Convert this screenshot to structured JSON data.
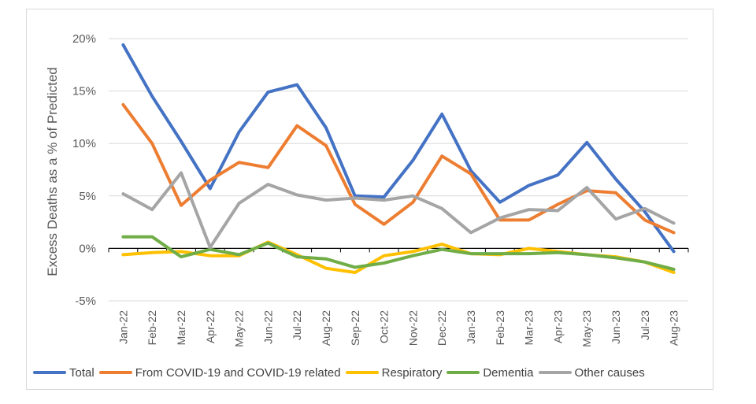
{
  "chart_data": {
    "type": "line",
    "title": "",
    "xlabel": "",
    "ylabel": "Excess Deaths as a % of Predicted",
    "ylim": [
      -5,
      20
    ],
    "yticks": [
      -5,
      0,
      5,
      10,
      15,
      20
    ],
    "ytick_labels": [
      "-5%",
      "0%",
      "5%",
      "10%",
      "15%",
      "20%"
    ],
    "grid": "horizontal",
    "legend_position": "bottom",
    "categories": [
      "Jan-22",
      "Feb-22",
      "Mar-22",
      "Apr-22",
      "May-22",
      "Jun-22",
      "Jul-22",
      "Aug-22",
      "Sep-22",
      "Oct-22",
      "Nov-22",
      "Dec-22",
      "Jan-23",
      "Feb-23",
      "Mar-23",
      "Apr-23",
      "May-23",
      "Jun-23",
      "Jul-23",
      "Aug-23"
    ],
    "series": [
      {
        "name": "Total",
        "color": "#4472c4",
        "values": [
          19.4,
          14.5,
          10.2,
          5.7,
          11.1,
          14.9,
          15.6,
          11.5,
          5.0,
          4.9,
          8.4,
          12.8,
          7.4,
          4.4,
          6.0,
          7.0,
          10.1,
          6.6,
          3.5,
          -0.3
        ]
      },
      {
        "name": "From COVID-19 and COVID-19 related",
        "color": "#ed7d31",
        "values": [
          13.7,
          10.0,
          4.1,
          6.5,
          8.2,
          7.7,
          11.7,
          9.8,
          4.2,
          2.3,
          4.4,
          8.8,
          7.1,
          2.7,
          2.7,
          4.2,
          5.5,
          5.3,
          2.7,
          1.5
        ]
      },
      {
        "name": "Respiratory",
        "color": "#ffc000",
        "values": [
          -0.6,
          -0.4,
          -0.3,
          -0.7,
          -0.7,
          0.6,
          -0.6,
          -1.9,
          -2.3,
          -0.7,
          -0.3,
          0.4,
          -0.5,
          -0.6,
          0.0,
          -0.3,
          -0.6,
          -0.8,
          -1.3,
          -2.3
        ]
      },
      {
        "name": "Dementia",
        "color": "#70ad47",
        "values": [
          1.1,
          1.1,
          -0.8,
          -0.1,
          -0.6,
          0.5,
          -0.8,
          -1.0,
          -1.8,
          -1.4,
          -0.7,
          -0.1,
          -0.5,
          -0.5,
          -0.5,
          -0.4,
          -0.6,
          -0.9,
          -1.3,
          -2.0
        ]
      },
      {
        "name": "Other causes",
        "color": "#a5a5a5",
        "values": [
          5.2,
          3.7,
          7.2,
          0.1,
          4.3,
          6.1,
          5.1,
          4.6,
          4.8,
          4.6,
          5.0,
          3.8,
          1.5,
          2.9,
          3.7,
          3.6,
          5.8,
          2.8,
          3.8,
          2.4
        ]
      }
    ]
  }
}
